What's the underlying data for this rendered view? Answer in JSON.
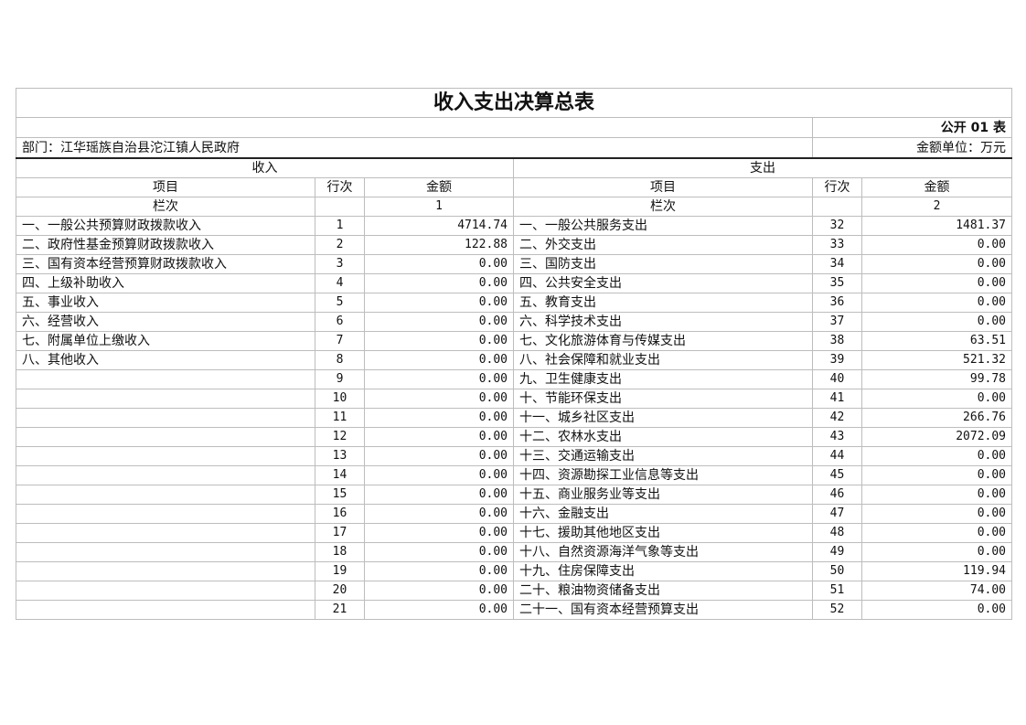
{
  "title": "收入支出决算总表",
  "form_code": "公开 01 表",
  "department": "部门：江华瑶族自治县沱江镇人民政府",
  "unit": "金额单位：万元",
  "sections": {
    "income": "收入",
    "expense": "支出"
  },
  "headers": {
    "item": "项目",
    "line": "行次",
    "amount": "金额",
    "column_no": "栏次",
    "income_col": "1",
    "expense_col": "2"
  },
  "rows": [
    {
      "in_name": "一、一般公共预算财政拨款收入",
      "in_line": "1",
      "in_amt": "4714.74",
      "ex_name": "一、一般公共服务支出",
      "ex_line": "32",
      "ex_amt": "1481.37"
    },
    {
      "in_name": "二、政府性基金预算财政拨款收入",
      "in_line": "2",
      "in_amt": "122.88",
      "ex_name": "二、外交支出",
      "ex_line": "33",
      "ex_amt": "0.00"
    },
    {
      "in_name": "三、国有资本经营预算财政拨款收入",
      "in_line": "3",
      "in_amt": "0.00",
      "ex_name": "三、国防支出",
      "ex_line": "34",
      "ex_amt": "0.00"
    },
    {
      "in_name": "四、上级补助收入",
      "in_line": "4",
      "in_amt": "0.00",
      "ex_name": "四、公共安全支出",
      "ex_line": "35",
      "ex_amt": "0.00"
    },
    {
      "in_name": "五、事业收入",
      "in_line": "5",
      "in_amt": "0.00",
      "ex_name": "五、教育支出",
      "ex_line": "36",
      "ex_amt": "0.00"
    },
    {
      "in_name": "六、经营收入",
      "in_line": "6",
      "in_amt": "0.00",
      "ex_name": "六、科学技术支出",
      "ex_line": "37",
      "ex_amt": "0.00"
    },
    {
      "in_name": "七、附属单位上缴收入",
      "in_line": "7",
      "in_amt": "0.00",
      "ex_name": "七、文化旅游体育与传媒支出",
      "ex_line": "38",
      "ex_amt": "63.51"
    },
    {
      "in_name": "八、其他收入",
      "in_line": "8",
      "in_amt": "0.00",
      "ex_name": "八、社会保障和就业支出",
      "ex_line": "39",
      "ex_amt": "521.32"
    },
    {
      "in_name": "",
      "in_line": "9",
      "in_amt": "0.00",
      "ex_name": "九、卫生健康支出",
      "ex_line": "40",
      "ex_amt": "99.78"
    },
    {
      "in_name": "",
      "in_line": "10",
      "in_amt": "0.00",
      "ex_name": "十、节能环保支出",
      "ex_line": "41",
      "ex_amt": "0.00"
    },
    {
      "in_name": "",
      "in_line": "11",
      "in_amt": "0.00",
      "ex_name": "十一、城乡社区支出",
      "ex_line": "42",
      "ex_amt": "266.76"
    },
    {
      "in_name": "",
      "in_line": "12",
      "in_amt": "0.00",
      "ex_name": "十二、农林水支出",
      "ex_line": "43",
      "ex_amt": "2072.09"
    },
    {
      "in_name": "",
      "in_line": "13",
      "in_amt": "0.00",
      "ex_name": "十三、交通运输支出",
      "ex_line": "44",
      "ex_amt": "0.00"
    },
    {
      "in_name": "",
      "in_line": "14",
      "in_amt": "0.00",
      "ex_name": "十四、资源勘探工业信息等支出",
      "ex_line": "45",
      "ex_amt": "0.00"
    },
    {
      "in_name": "",
      "in_line": "15",
      "in_amt": "0.00",
      "ex_name": "十五、商业服务业等支出",
      "ex_line": "46",
      "ex_amt": "0.00"
    },
    {
      "in_name": "",
      "in_line": "16",
      "in_amt": "0.00",
      "ex_name": "十六、金融支出",
      "ex_line": "47",
      "ex_amt": "0.00"
    },
    {
      "in_name": "",
      "in_line": "17",
      "in_amt": "0.00",
      "ex_name": "十七、援助其他地区支出",
      "ex_line": "48",
      "ex_amt": "0.00"
    },
    {
      "in_name": "",
      "in_line": "18",
      "in_amt": "0.00",
      "ex_name": "十八、自然资源海洋气象等支出",
      "ex_line": "49",
      "ex_amt": "0.00"
    },
    {
      "in_name": "",
      "in_line": "19",
      "in_amt": "0.00",
      "ex_name": "十九、住房保障支出",
      "ex_line": "50",
      "ex_amt": "119.94"
    },
    {
      "in_name": "",
      "in_line": "20",
      "in_amt": "0.00",
      "ex_name": "二十、粮油物资储备支出",
      "ex_line": "51",
      "ex_amt": "74.00"
    },
    {
      "in_name": "",
      "in_line": "21",
      "in_amt": "0.00",
      "ex_name": "二十一、国有资本经营预算支出",
      "ex_line": "52",
      "ex_amt": "0.00"
    }
  ]
}
